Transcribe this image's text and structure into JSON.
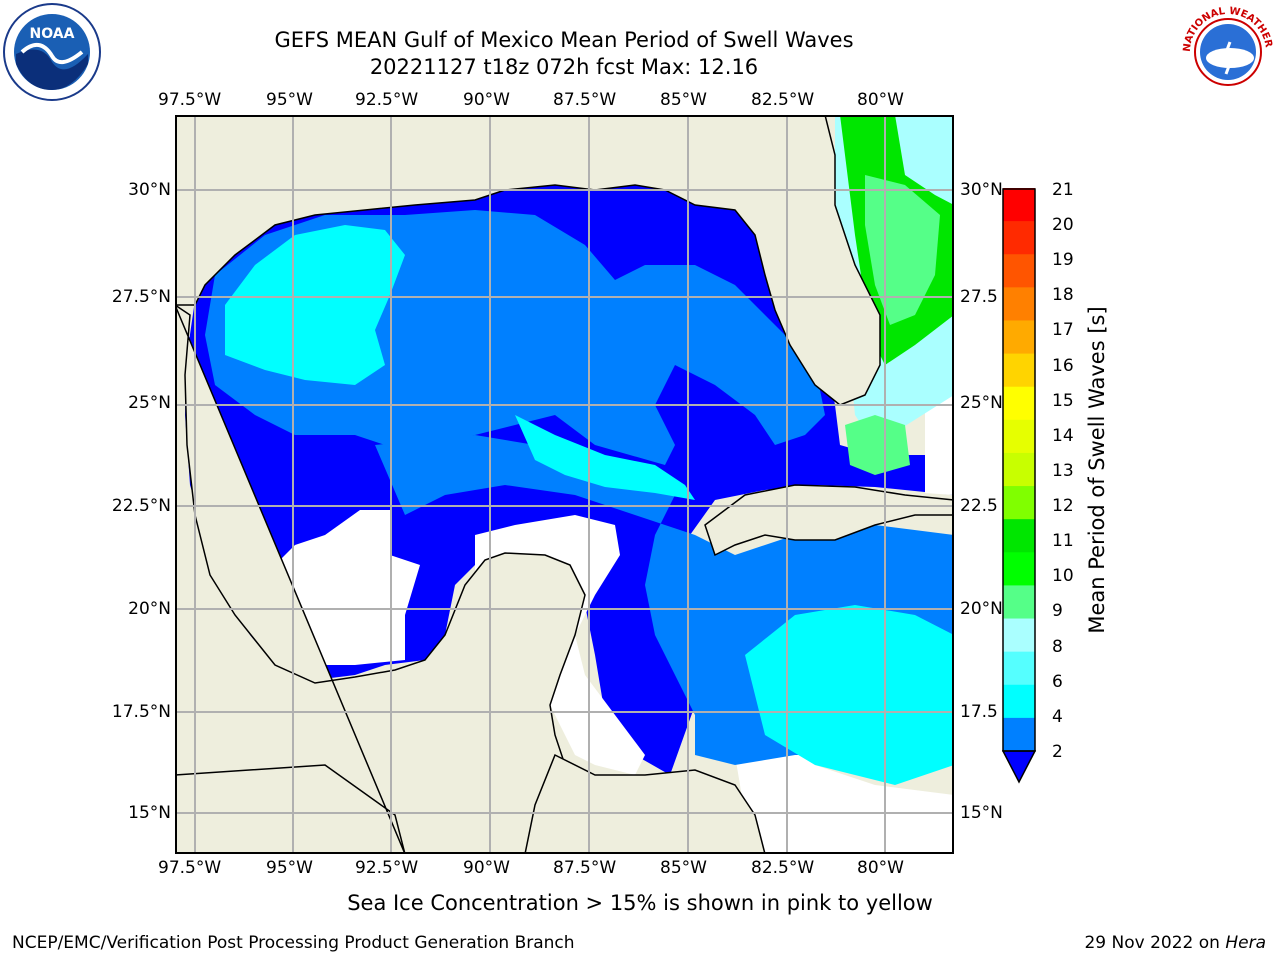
{
  "title_line1": "GEFS MEAN Gulf of Mexico Mean Period of Swell Waves",
  "title_line2": "20221127 t18z 072h fcst   Max: 12.16",
  "lon_ticks": [
    "97.5°W",
    "95°W",
    "92.5°W",
    "90°W",
    "87.5°W",
    "85°W",
    "82.5°W",
    "80°W"
  ],
  "lat_ticks_left": [
    "30°N",
    "27.5°N",
    "25°N",
    "22.5°N",
    "20°N",
    "17.5°N",
    "15°N"
  ],
  "lat_ticks_right": [
    "30°N",
    "27.5",
    "25°N",
    "22.5",
    "20°N",
    "17.5",
    "15°N"
  ],
  "colorbar": {
    "label": "Mean Period of Swell Waves [s]",
    "ticks": [
      "21",
      "20",
      "19",
      "18",
      "17",
      "16",
      "15",
      "14",
      "13",
      "12",
      "11",
      "10",
      "9",
      "8",
      "6",
      "4",
      "2"
    ],
    "colors": [
      "#ff0000",
      "#ff2a00",
      "#ff5500",
      "#ff8000",
      "#ffaa00",
      "#ffd400",
      "#ffff00",
      "#e6ff00",
      "#c8ff00",
      "#80ff00",
      "#00e600",
      "#00ff00",
      "#55ff88",
      "#aaffff",
      "#55ffff",
      "#00ffff",
      "#0080ff",
      "#0000ff"
    ]
  },
  "note": "Sea Ice Concentration > 15% is shown in pink to yellow",
  "footer_left": "NCEP/EMC/Verification Post Processing Product Generation Branch",
  "footer_right_prefix": "29 Nov 2022 on ",
  "footer_right_host": "Hera",
  "logos": {
    "left": "NOAA",
    "right": "NATIONAL WEATHER SERVICE"
  },
  "map_colors": {
    "land": "#eeeedd",
    "ocean_deep": "#0000ff",
    "ocean_mid": "#0080ff",
    "ocean_light": "#00ffff",
    "grid": "#b0b0b0"
  }
}
